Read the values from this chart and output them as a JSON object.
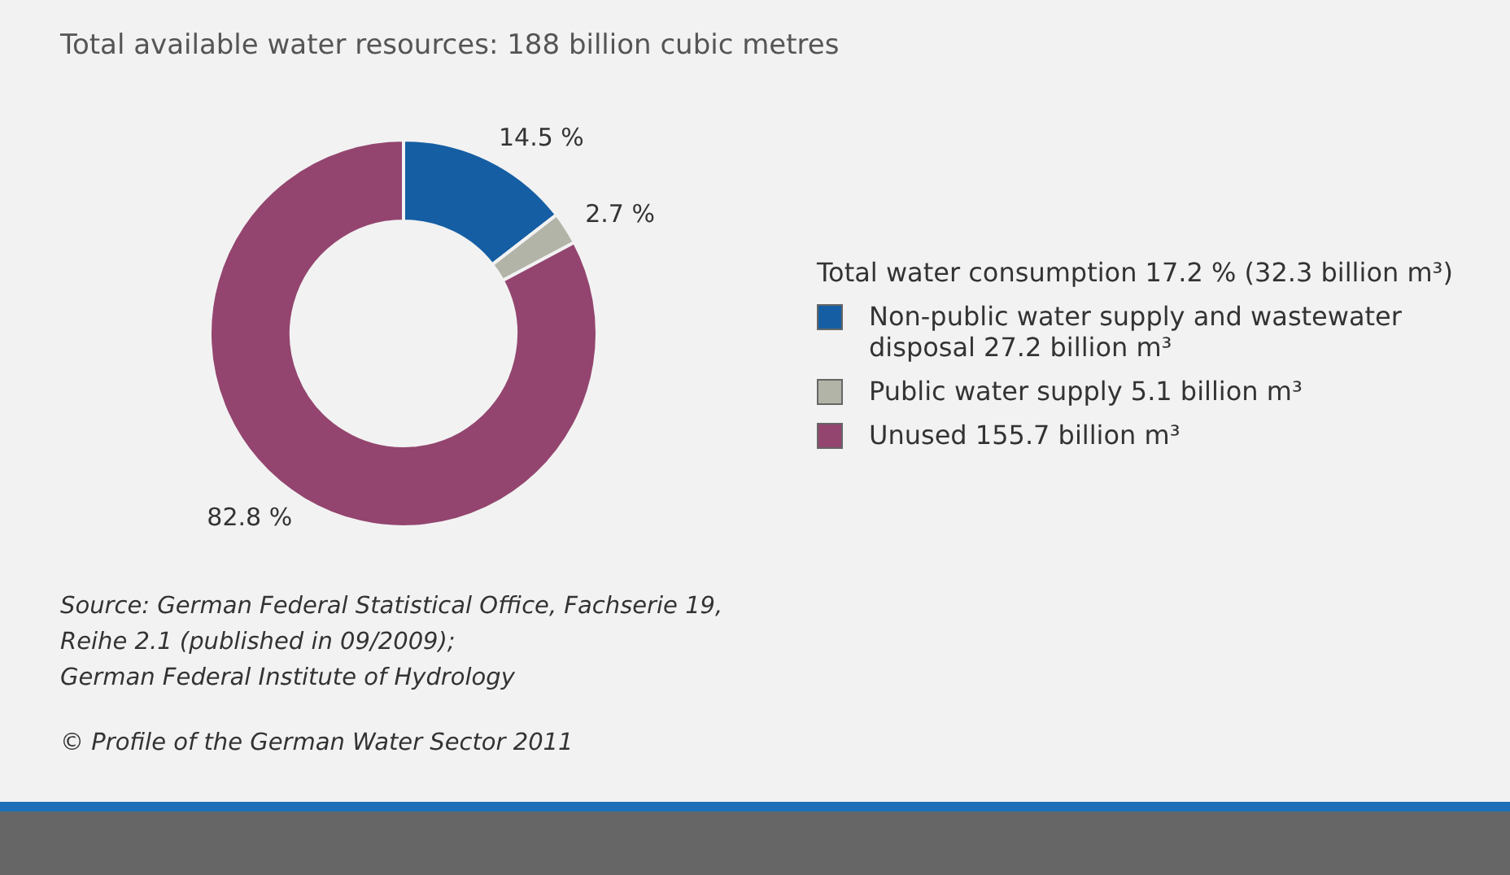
{
  "chart_data": {
    "type": "donut",
    "title": "Total available water resources: 188 billion cubic metres",
    "legend_title": "Total water consumption 17.2 % (32.3 billion m³)",
    "categories": [
      "Non-public water supply and wastewater disposal 27.2 billion m³",
      "Public water supply 5.1 billion m³",
      "Unused 155.7 billion m³"
    ],
    "values": [
      14.5,
      2.7,
      82.8
    ],
    "colors": [
      "#155ea3",
      "#b3b4a8",
      "#93456f"
    ],
    "value_labels": [
      "14.5 %",
      "2.7 %",
      "82.8 %"
    ],
    "legend": "right",
    "annotations": [
      "Source: German Federal Statistical Office, Fachserie 19, Reihe 2.1 (published in 09/2009);",
      "German Federal Institute of Hydrology",
      "© Profile of the German Water Sector 2011"
    ]
  }
}
